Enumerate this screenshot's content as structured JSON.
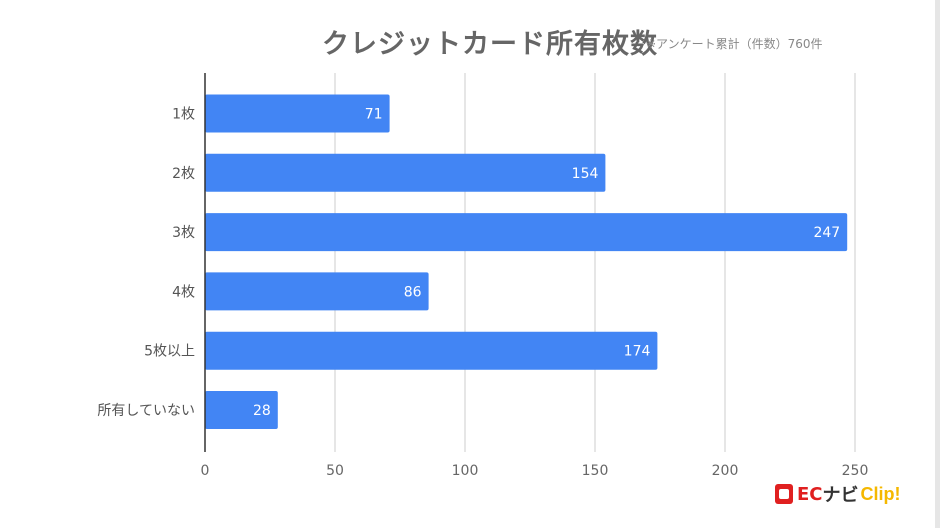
{
  "chart_data": {
    "type": "bar",
    "orientation": "horizontal",
    "title": "クレジットカード所有枚数",
    "subtitle": "※アンケート累計（件数）760件",
    "categories": [
      "1枚",
      "2枚",
      "3枚",
      "4枚",
      "5枚以上",
      "所有していない"
    ],
    "values": [
      71,
      154,
      247,
      86,
      174,
      28
    ],
    "xlim": [
      0,
      250
    ],
    "xticks": [
      0,
      50,
      100,
      150,
      200,
      250
    ],
    "grid": true,
    "bar_color": "#4285f4",
    "xlabel": "",
    "ylabel": ""
  },
  "logo": {
    "ec": "EC",
    "navi": "ナビ",
    "clip": "Clip!"
  }
}
